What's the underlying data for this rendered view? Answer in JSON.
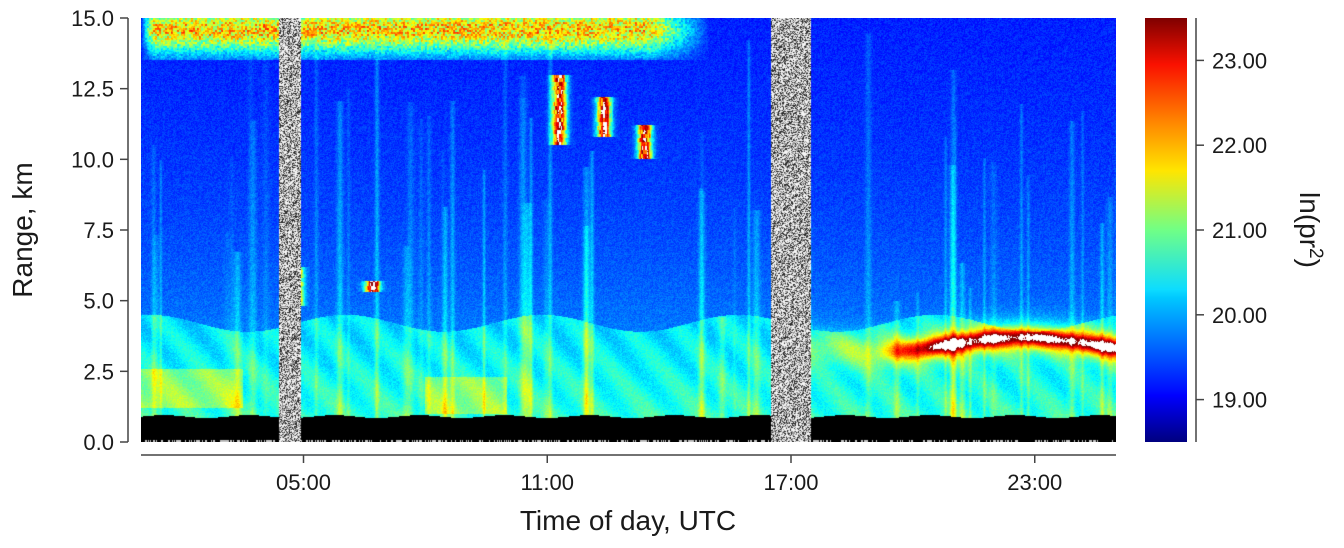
{
  "chart_data": {
    "type": "heatmap",
    "title": "",
    "xlabel": "Time of day, UTC",
    "ylabel": "Range, km",
    "x_unit": "hours UTC",
    "y_unit": "km",
    "xlim": [
      1.0,
      25.0
    ],
    "ylim": [
      0.0,
      15.0
    ],
    "x_ticks": [
      {
        "value": 5,
        "label": "05:00"
      },
      {
        "value": 11,
        "label": "11:00"
      },
      {
        "value": 17,
        "label": "17:00"
      },
      {
        "value": 23,
        "label": "23:00"
      }
    ],
    "y_ticks": [
      {
        "value": 0.0,
        "label": "0.0"
      },
      {
        "value": 2.5,
        "label": "2.5"
      },
      {
        "value": 5.0,
        "label": "5.0"
      },
      {
        "value": 7.5,
        "label": "7.5"
      },
      {
        "value": 10.0,
        "label": "10.0"
      },
      {
        "value": 12.5,
        "label": "12.5"
      },
      {
        "value": 15.0,
        "label": "15.0"
      }
    ],
    "colorbar": {
      "label_main": "ln(pr",
      "label_sup": "2",
      "label_end": ")",
      "range": [
        18.5,
        23.5
      ],
      "colormap": "jet",
      "ticks": [
        {
          "value": 19.0,
          "label": "19.00"
        },
        {
          "value": 20.0,
          "label": "20.00"
        },
        {
          "value": 21.0,
          "label": "21.00"
        },
        {
          "value": 22.0,
          "label": "22.00"
        },
        {
          "value": 23.0,
          "label": "23.00"
        }
      ]
    },
    "no_data_intervals_hours": [
      [
        4.4,
        4.95
      ],
      [
        16.5,
        17.5
      ]
    ],
    "features": {
      "ground_layer_km": [
        0.0,
        0.9
      ],
      "boundary_layer_top_km": 4.2,
      "elevated_aerosol_layer": {
        "x_hours": [
          19.0,
          24.9
        ],
        "range_km": [
          2.9,
          4.1
        ],
        "peak_value": 23.2
      },
      "cirrus_top": {
        "x_hours": [
          1.0,
          15.0
        ],
        "range_km": [
          13.5,
          15.0
        ]
      },
      "cloud_streaks": [
        {
          "x_hours": 11.3,
          "range_km": [
            10.5,
            13.0
          ]
        },
        {
          "x_hours": 12.4,
          "range_km": [
            10.8,
            12.2
          ]
        },
        {
          "x_hours": 13.4,
          "range_km": [
            10.0,
            11.2
          ]
        },
        {
          "x_hours": 6.7,
          "range_km": [
            5.3,
            5.7
          ]
        },
        {
          "x_hours": 4.8,
          "range_km": [
            4.8,
            6.2
          ]
        }
      ]
    }
  }
}
